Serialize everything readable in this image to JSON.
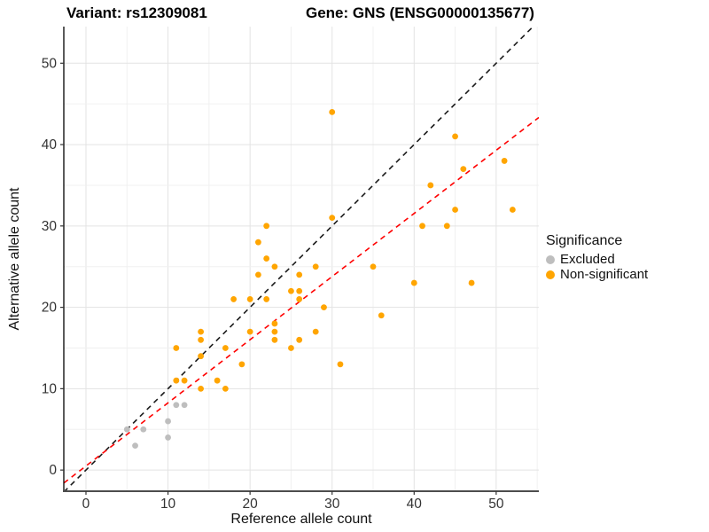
{
  "chart_data": {
    "type": "scatter",
    "titles": {
      "variant": "Variant: rs12309081",
      "gene": "Gene: GNS (ENSG00000135677)"
    },
    "xlabel": "Reference allele count",
    "ylabel": "Alternative allele count",
    "xlim": [
      -2.7,
      55.2
    ],
    "ylim": [
      -2.6,
      54.5
    ],
    "xticks": [
      0,
      10,
      20,
      30,
      40,
      50
    ],
    "yticks": [
      0,
      10,
      20,
      30,
      40,
      50
    ],
    "grid": true,
    "grid_minor_step": 5,
    "legend_position": "right",
    "legend": {
      "title": "Significance",
      "items": [
        {
          "label": "Excluded",
          "color": "#BEBEBE"
        },
        {
          "label": "Non-significant",
          "color": "#FFA500"
        }
      ]
    },
    "series": [
      {
        "name": "Excluded",
        "color": "#BEBEBE",
        "points": [
          [
            5,
            5
          ],
          [
            6,
            3
          ],
          [
            7,
            5
          ],
          [
            10,
            4
          ],
          [
            10,
            6
          ],
          [
            11,
            8
          ],
          [
            12,
            8
          ]
        ]
      },
      {
        "name": "Non-significant",
        "color": "#FFA500",
        "points": [
          [
            11,
            11
          ],
          [
            11,
            15
          ],
          [
            12,
            11
          ],
          [
            14,
            10
          ],
          [
            14,
            14
          ],
          [
            14,
            16
          ],
          [
            14,
            17
          ],
          [
            16,
            11
          ],
          [
            17,
            10
          ],
          [
            17,
            15
          ],
          [
            18,
            21
          ],
          [
            19,
            13
          ],
          [
            20,
            17
          ],
          [
            20,
            21
          ],
          [
            21,
            24
          ],
          [
            21,
            28
          ],
          [
            22,
            21
          ],
          [
            22,
            26
          ],
          [
            22,
            30
          ],
          [
            23,
            16
          ],
          [
            23,
            17
          ],
          [
            23,
            18
          ],
          [
            23,
            25
          ],
          [
            25,
            15
          ],
          [
            25,
            22
          ],
          [
            26,
            16
          ],
          [
            26,
            21
          ],
          [
            26,
            22
          ],
          [
            26,
            24
          ],
          [
            28,
            17
          ],
          [
            28,
            25
          ],
          [
            29,
            20
          ],
          [
            30,
            31
          ],
          [
            30,
            44
          ],
          [
            31,
            13
          ],
          [
            35,
            25
          ],
          [
            36,
            19
          ],
          [
            40,
            23
          ],
          [
            41,
            30
          ],
          [
            42,
            35
          ],
          [
            44,
            30
          ],
          [
            45,
            32
          ],
          [
            45,
            41
          ],
          [
            46,
            37
          ],
          [
            47,
            23
          ],
          [
            51,
            38
          ],
          [
            52,
            32
          ]
        ]
      }
    ],
    "lines": [
      {
        "name": "identity",
        "slope": 1,
        "intercept": 0,
        "color": "#1A1A1A",
        "dash": "6,5"
      },
      {
        "name": "regression",
        "slope": 0.776,
        "intercept": 0.5,
        "color": "#FF0000",
        "dash": "6,5"
      }
    ],
    "colors": {
      "grid_major": "#E3E3E3",
      "grid_minor": "#F0F0F0",
      "axis_line_left": "#000000",
      "axis_line_bottom": "#4D4D4D",
      "tick_text": "#333333"
    }
  }
}
